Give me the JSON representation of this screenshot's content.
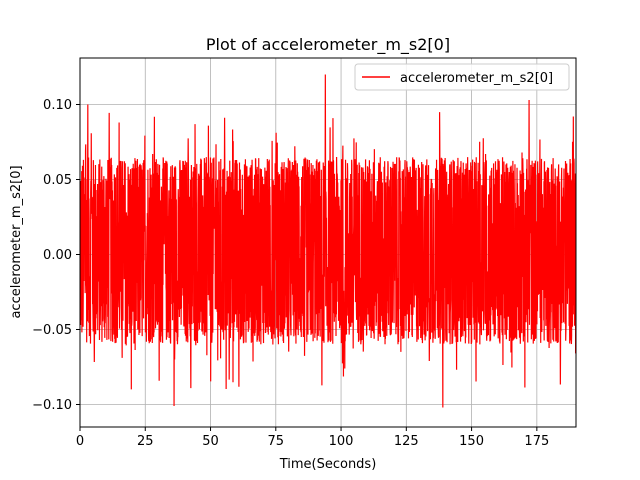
{
  "chart_data": {
    "type": "line",
    "title": "Plot of accelerometer_m_s2[0]",
    "xlabel": "Time(Seconds)",
    "ylabel": "accelerometer_m_s2[0]",
    "xlim": [
      0,
      190
    ],
    "ylim": [
      -0.115,
      0.131
    ],
    "xticks": [
      0,
      25,
      50,
      75,
      100,
      125,
      150,
      175
    ],
    "xtick_labels": [
      "0",
      "25",
      "50",
      "75",
      "100",
      "125",
      "150",
      "175"
    ],
    "yticks": [
      -0.1,
      -0.05,
      0.0,
      0.05,
      0.1
    ],
    "ytick_labels": [
      "−0.10",
      "−0.05",
      "0.00",
      "0.05",
      "0.10"
    ],
    "grid": true,
    "legend_position": "top-right",
    "colors": {
      "series": "#ff0000",
      "grid": "#b0b0b0",
      "axes": "#000000"
    },
    "series": [
      {
        "name": "accelerometer_m_s2[0]",
        "x_start": 0,
        "x_end": 190,
        "typical_range": [
          -0.06,
          0.065
        ],
        "peaks": [
          {
            "x": 3,
            "y": 0.1
          },
          {
            "x": 15,
            "y": 0.088
          },
          {
            "x": 36,
            "y": -0.101
          },
          {
            "x": 94,
            "y": 0.12
          },
          {
            "x": 139,
            "y": -0.102
          },
          {
            "x": 172,
            "y": 0.103
          },
          {
            "x": 189,
            "y": 0.092
          }
        ]
      }
    ]
  }
}
